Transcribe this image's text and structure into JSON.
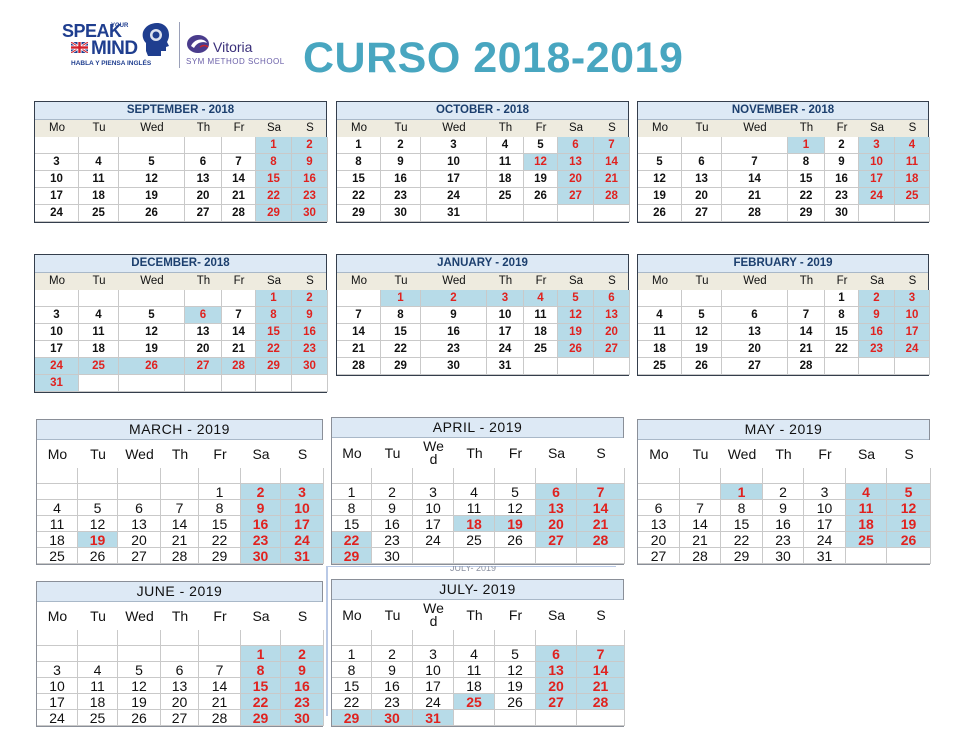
{
  "header": {
    "title": "CURSO 2018-2019",
    "brand_speak": "SPEAK",
    "brand_your": "YOUR",
    "brand_mind": "MIND",
    "brand_tagline": "HABLA Y PIENSA INGLÉS",
    "school_name": "Vitoria",
    "school_subtitle": "SYM METHOD SCHOOL"
  },
  "colors": {
    "title": "#48a6c0",
    "weekend_fill": "#b7dbe8",
    "weekend_text": "#e0221f",
    "header_fill": "#dde9f5",
    "weekday_fill": "#eeebdf"
  },
  "months": [
    {
      "title": "SEPTEMBER - 2018",
      "offset": 5,
      "days": 30,
      "blue": [],
      "plain_blue": []
    },
    {
      "title": "OCTOBER - 2018",
      "offset": 0,
      "days": 31,
      "blue": [
        12
      ],
      "plain_blue": []
    },
    {
      "title": "NOVEMBER - 2018",
      "offset": 3,
      "days": 30,
      "blue": [
        1
      ],
      "plain_blue": []
    },
    {
      "title": "DECEMBER- 2018",
      "offset": 5,
      "days": 31,
      "blue": [
        6,
        24,
        25,
        26,
        27,
        28,
        31
      ],
      "plain_blue": []
    },
    {
      "title": "JANUARY - 2019",
      "offset": 1,
      "days": 31,
      "blue": [
        1,
        2,
        3,
        4
      ],
      "plain_blue": []
    },
    {
      "title": "FEBRUARY - 2019",
      "offset": 4,
      "days": 28,
      "blue": [],
      "plain_blue": []
    },
    {
      "title": "MARCH - 2019",
      "offset": 4,
      "days": 31,
      "blue": [
        19
      ],
      "plain_blue": []
    },
    {
      "title": "APRIL - 2019",
      "offset": 0,
      "days": 30,
      "blue": [
        18,
        19,
        22,
        29
      ],
      "plain_blue": []
    },
    {
      "title": "MAY - 2019",
      "offset": 2,
      "days": 31,
      "blue": [
        1
      ],
      "plain_blue": []
    },
    {
      "title": "JUNE - 2019",
      "offset": 5,
      "days": 30,
      "blue": [],
      "plain_blue": []
    },
    {
      "title": "JULY- 2019",
      "offset": 0,
      "days": 31,
      "blue": [
        25,
        29,
        30,
        31
      ],
      "plain_blue": []
    }
  ],
  "weekdays": [
    "Mo",
    "Tu",
    "Wed",
    "Th",
    "Fr",
    "Sa",
    "S"
  ],
  "artefact_text": "JULY- 2019"
}
